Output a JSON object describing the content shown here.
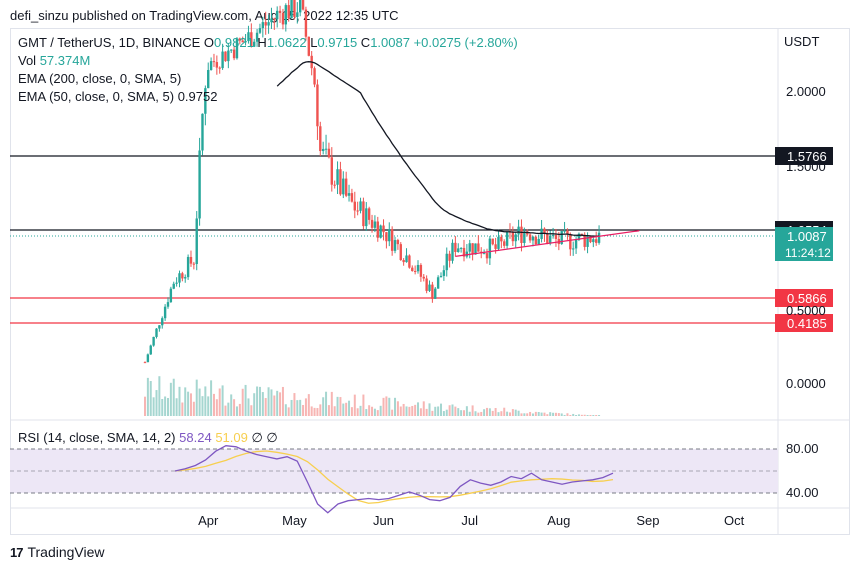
{
  "header": {
    "published_line": "defi_sinzu published on TradingView.com, Aug 15, 2022 12:35 UTC"
  },
  "legend": {
    "symbol": "GMT / TetherUS, 1D, BINANCE",
    "ohlc": [
      {
        "label": "O",
        "value": "0.9821"
      },
      {
        "label": "H",
        "value": "1.0622"
      },
      {
        "label": "L",
        "value": "0.9715"
      },
      {
        "label": "C",
        "value": "1.0087"
      }
    ],
    "change": "+0.0275 (+2.80%)",
    "vol_label": "Vol",
    "vol_value": "57.374M",
    "ema200_label": "EMA (200, close, 0, SMA, 5)",
    "ema50_label": "EMA (50, close, 0, SMA, 5)",
    "ema50_value": "0.9752",
    "rsi_label": "RSI (14, close, SMA, 14, 2)",
    "rsi_value": "58.24",
    "rsi_sma_value": "51.09",
    "rsi_extra": "∅ ∅"
  },
  "footer": {
    "brand": "TradingView"
  },
  "colors": {
    "up": "#26a69a",
    "down": "#ef5350",
    "ema": "#131722",
    "support_line": "#f23645",
    "trend_line": "#e91e63",
    "rsi_line": "#7e57c2",
    "rsi_sma": "#f7cf4f",
    "rsi_band": "#ede7f6"
  },
  "chart_data": {
    "type": "candlestick",
    "title": "GMT / TetherUS, 1D, BINANCE",
    "y_axis_unit": "USDT",
    "y_ticks": [
      "2.0000",
      "1.5000",
      "0.5000",
      "0.0000"
    ],
    "x_ticks": [
      "Apr",
      "May",
      "Jun",
      "Jul",
      "Aug",
      "Sep",
      "Oct"
    ],
    "price_levels": [
      {
        "value": 1.5766,
        "label": "1.5766",
        "color": "#131722"
      },
      {
        "value": 1.0554,
        "label": "1.0554",
        "color": "#131722"
      },
      {
        "value": 0.5866,
        "label": "0.5866",
        "color": "#f23645"
      },
      {
        "value": 0.4185,
        "label": "0.4185",
        "color": "#f23645"
      }
    ],
    "last_price": {
      "value": 1.0087,
      "label": "1.0087",
      "countdown": "11:24:12"
    },
    "trend_line": {
      "from": {
        "date": "2022-06-26",
        "price": 0.87
      },
      "to": {
        "date": "2022-08-29",
        "price": 1.05
      }
    },
    "candles_approx": [
      {
        "date": "2022-03-10",
        "close": 0.15
      },
      {
        "date": "2022-03-20",
        "close": 0.7
      },
      {
        "date": "2022-03-27",
        "close": 0.85
      },
      {
        "date": "2022-04-01",
        "close": 2.5
      },
      {
        "date": "2022-04-15",
        "close": 3.0
      },
      {
        "date": "2022-04-27",
        "close": 3.5
      },
      {
        "date": "2022-05-03",
        "close": 3.6
      },
      {
        "date": "2022-05-10",
        "close": 1.6
      },
      {
        "date": "2022-05-20",
        "close": 1.25
      },
      {
        "date": "2022-06-01",
        "close": 1.05
      },
      {
        "date": "2022-06-10",
        "close": 0.85
      },
      {
        "date": "2022-06-18",
        "close": 0.62
      },
      {
        "date": "2022-06-26",
        "close": 0.95
      },
      {
        "date": "2022-07-10",
        "close": 0.92
      },
      {
        "date": "2022-07-20",
        "close": 1.05
      },
      {
        "date": "2022-08-01",
        "close": 0.97
      },
      {
        "date": "2022-08-15",
        "close": 1.0087
      }
    ],
    "rsi": {
      "levels": [
        80,
        40
      ],
      "y_ticks": [
        "80.00",
        "40.00"
      ],
      "last": 58.24,
      "sma_last": 51.09,
      "series": [
        60,
        62,
        65,
        70,
        78,
        83,
        82,
        78,
        75,
        73,
        71,
        73,
        69,
        50,
        30,
        22,
        30,
        33,
        34,
        35,
        34,
        35,
        38,
        41,
        38,
        34,
        33,
        36,
        46,
        52,
        49,
        47,
        50,
        55,
        53,
        58,
        52,
        50,
        48,
        50,
        51,
        52,
        54,
        58
      ]
    }
  }
}
